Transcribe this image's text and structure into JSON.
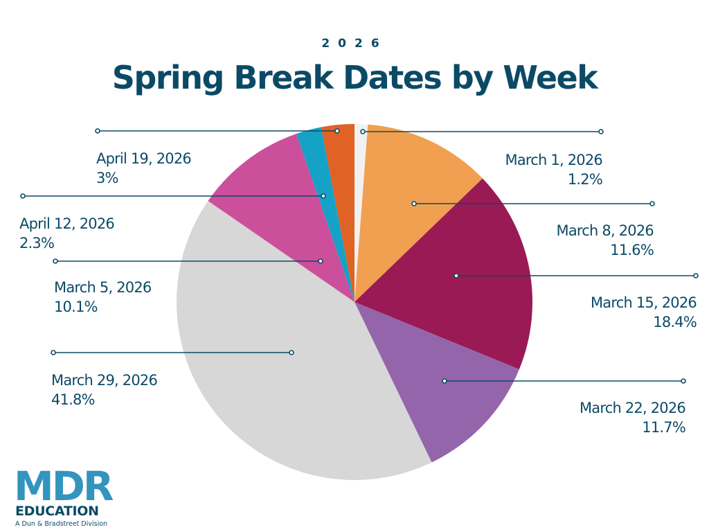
{
  "header": {
    "year": "2026",
    "title": "Spring Break Dates by Week"
  },
  "logo": {
    "name": "MDR",
    "sub": "EDUCATION",
    "tagline": "A Dun & Bradstreet Division"
  },
  "colors": {
    "text": "#0b4a66",
    "logo": "#3394bd"
  },
  "chart_data": {
    "type": "pie",
    "title": "Spring Break Dates by Week",
    "subtitle": "2026",
    "slices": [
      {
        "label": "March 1, 2026",
        "value": 1.2,
        "value_label": "1.2%",
        "color": "#f1f1f1"
      },
      {
        "label": "March 8, 2026",
        "value": 11.6,
        "value_label": "11.6%",
        "color": "#f0a050"
      },
      {
        "label": "March 15, 2026",
        "value": 18.4,
        "value_label": "18.4%",
        "color": "#9a1a55"
      },
      {
        "label": "March 22, 2026",
        "value": 11.7,
        "value_label": "11.7%",
        "color": "#9565ab"
      },
      {
        "label": "March 29, 2026",
        "value": 41.8,
        "value_label": "41.8%",
        "color": "#d7d7d7"
      },
      {
        "label": "March 5, 2026",
        "value": 10.1,
        "value_label": "10.1%",
        "color": "#cc4f9c"
      },
      {
        "label": "April 12, 2026",
        "value": 2.3,
        "value_label": "2.3%",
        "color": "#16a1c6"
      },
      {
        "label": "April 19, 2026",
        "value": 3.0,
        "value_label": "3%",
        "color": "#e06224"
      }
    ]
  }
}
